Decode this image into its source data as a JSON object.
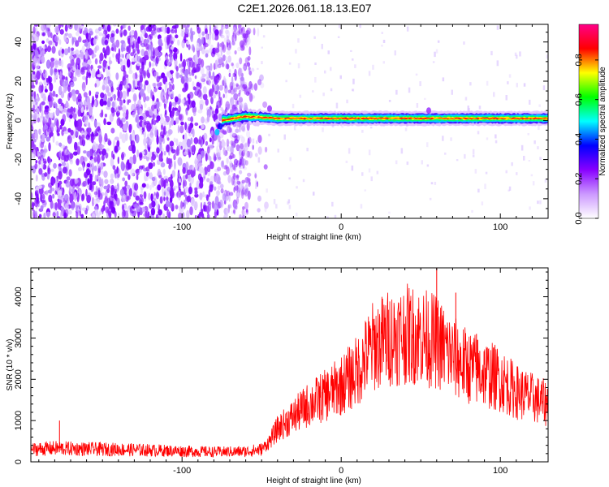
{
  "title": "C2E1.2026.061.18.13.E07",
  "chart_data": [
    {
      "type": "heatmap",
      "xlabel": "Height of straight line (km)",
      "ylabel": "Frequency (Hz)",
      "xlim": [
        -195,
        130
      ],
      "ylim": [
        -50,
        49
      ],
      "xticks": [
        -100,
        0,
        100
      ],
      "yticks": [
        -40,
        -20,
        0,
        20,
        40
      ],
      "colorbar": {
        "label": "Normalized spectral amplitude",
        "range": [
          0,
          0.98
        ],
        "ticks": [
          0.0,
          0.2,
          0.4,
          0.6,
          0.8
        ],
        "colors": [
          "#ffffff",
          "#cc99ff",
          "#8800ff",
          "#0000ff",
          "#00ffff",
          "#00ff00",
          "#ffff00",
          "#ff0000",
          "#ff0088"
        ]
      },
      "noise_region_x": [
        -195,
        -57
      ],
      "signal_band": {
        "x": [
          -75,
          130
        ],
        "center_freq": [
          0,
          2,
          1,
          1,
          1,
          1,
          1
        ],
        "center_x": [
          -75,
          -60,
          -40,
          -20,
          0,
          60,
          130
        ]
      }
    },
    {
      "type": "line",
      "xlabel": "Height of straight line (km)",
      "ylabel": "SNR (10 * v/v)",
      "xlim": [
        -195,
        130
      ],
      "ylim": [
        0,
        4700
      ],
      "xticks": [
        -100,
        0,
        100
      ],
      "yticks": [
        0,
        1000,
        2000,
        3000,
        4000
      ],
      "color": "#ff0000",
      "series": [
        {
          "x": [
            -195,
            -180,
            -160,
            -140,
            -120,
            -100,
            -80,
            -60,
            -50,
            -45,
            -40,
            -30,
            -20,
            -10,
            0,
            10,
            20,
            30,
            40,
            50,
            60,
            70,
            80,
            90,
            100,
            110,
            120,
            130
          ],
          "values": [
            300,
            330,
            310,
            300,
            280,
            260,
            240,
            250,
            300,
            500,
            800,
            1100,
            1400,
            1600,
            1850,
            2200,
            2800,
            3000,
            3100,
            3050,
            2900,
            2550,
            2300,
            2150,
            2000,
            1700,
            1550,
            1400
          ]
        }
      ],
      "spikes": [
        {
          "x": -177,
          "y": 1000
        },
        {
          "x": -5,
          "y": 1500
        },
        {
          "x": 60,
          "y": 4700
        },
        {
          "x": 72,
          "y": 4100
        },
        {
          "x": 85,
          "y": 3100
        }
      ]
    }
  ]
}
